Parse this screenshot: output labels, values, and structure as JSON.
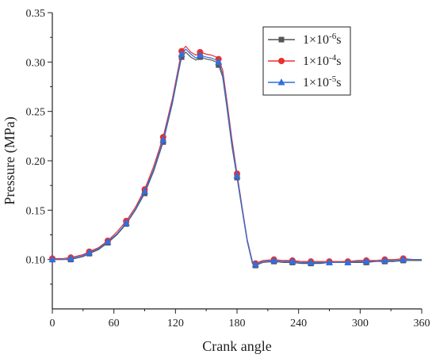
{
  "chart_data": {
    "type": "line",
    "xlabel": "Crank angle",
    "ylabel": "Pressure (MPa)",
    "xlim": [
      0,
      360
    ],
    "ylim": [
      0.05,
      0.35
    ],
    "xticks": [
      0,
      60,
      120,
      180,
      240,
      300,
      360
    ],
    "yticks": [
      0.1,
      0.15,
      0.2,
      0.25,
      0.3,
      0.35
    ],
    "x_tick_labels": [
      "0",
      "60",
      "120",
      "180",
      "240",
      "300",
      "360"
    ],
    "y_tick_labels": [
      "0.10",
      "0.15",
      "0.20",
      "0.25",
      "0.30",
      "0.35"
    ],
    "grid": false,
    "legend_position": "top-right",
    "marker_x": [
      0,
      18,
      36,
      54,
      72,
      90,
      108,
      126,
      144,
      162,
      180,
      198,
      216,
      234,
      252,
      270,
      288,
      306,
      324,
      342
    ],
    "series": [
      {
        "name": "1×10",
        "name_sup": "-6",
        "name_suffix": "s",
        "color": "#555555",
        "marker": "square",
        "x": [
          0,
          10,
          18,
          30,
          36,
          45,
          54,
          63,
          72,
          81,
          90,
          99,
          108,
          117,
          123,
          126,
          130,
          135,
          140,
          144,
          150,
          155,
          160,
          162,
          166,
          170,
          175,
          180,
          185,
          190,
          195,
          198,
          205,
          216,
          225,
          234,
          243,
          252,
          261,
          270,
          279,
          288,
          297,
          306,
          315,
          324,
          333,
          342,
          352,
          360
        ],
        "y": [
          0.1,
          0.1,
          0.1,
          0.103,
          0.106,
          0.11,
          0.117,
          0.125,
          0.136,
          0.15,
          0.167,
          0.19,
          0.219,
          0.258,
          0.29,
          0.305,
          0.31,
          0.305,
          0.302,
          0.305,
          0.303,
          0.302,
          0.3,
          0.297,
          0.285,
          0.255,
          0.215,
          0.183,
          0.15,
          0.118,
          0.096,
          0.094,
          0.097,
          0.098,
          0.097,
          0.097,
          0.096,
          0.096,
          0.096,
          0.097,
          0.097,
          0.097,
          0.097,
          0.097,
          0.098,
          0.098,
          0.098,
          0.099,
          0.099,
          0.099
        ]
      },
      {
        "name": "1×10",
        "name_sup": "-4",
        "name_suffix": "s",
        "color": "#e8302f",
        "marker": "circle",
        "x": [
          0,
          10,
          18,
          30,
          36,
          45,
          54,
          63,
          72,
          81,
          90,
          99,
          108,
          117,
          123,
          126,
          130,
          135,
          140,
          144,
          150,
          155,
          160,
          162,
          166,
          170,
          175,
          180,
          185,
          190,
          195,
          198,
          205,
          216,
          225,
          234,
          243,
          252,
          261,
          270,
          279,
          288,
          297,
          306,
          315,
          324,
          333,
          342,
          352,
          360
        ],
        "y": [
          0.101,
          0.101,
          0.102,
          0.105,
          0.108,
          0.112,
          0.119,
          0.128,
          0.139,
          0.153,
          0.171,
          0.195,
          0.224,
          0.263,
          0.295,
          0.311,
          0.316,
          0.31,
          0.307,
          0.31,
          0.308,
          0.307,
          0.305,
          0.303,
          0.292,
          0.262,
          0.222,
          0.187,
          0.153,
          0.12,
          0.098,
          0.096,
          0.099,
          0.1,
          0.099,
          0.099,
          0.098,
          0.098,
          0.098,
          0.098,
          0.098,
          0.098,
          0.099,
          0.099,
          0.099,
          0.1,
          0.1,
          0.101,
          0.1,
          0.1
        ]
      },
      {
        "name": "1×10",
        "name_sup": "-5",
        "name_suffix": "s",
        "color": "#2f6fe0",
        "marker": "triangle",
        "x": [
          0,
          10,
          18,
          30,
          36,
          45,
          54,
          63,
          72,
          81,
          90,
          99,
          108,
          117,
          123,
          126,
          130,
          135,
          140,
          144,
          150,
          155,
          160,
          162,
          166,
          170,
          175,
          180,
          185,
          190,
          195,
          198,
          205,
          216,
          225,
          234,
          243,
          252,
          261,
          270,
          279,
          288,
          297,
          306,
          315,
          324,
          333,
          342,
          352,
          360
        ],
        "y": [
          0.1,
          0.1,
          0.101,
          0.104,
          0.107,
          0.111,
          0.118,
          0.126,
          0.137,
          0.151,
          0.169,
          0.192,
          0.221,
          0.26,
          0.292,
          0.308,
          0.313,
          0.308,
          0.304,
          0.307,
          0.305,
          0.304,
          0.302,
          0.3,
          0.288,
          0.258,
          0.218,
          0.185,
          0.151,
          0.119,
          0.097,
          0.095,
          0.098,
          0.099,
          0.098,
          0.098,
          0.097,
          0.097,
          0.097,
          0.097,
          0.097,
          0.097,
          0.098,
          0.098,
          0.098,
          0.099,
          0.099,
          0.1,
          0.1,
          0.1
        ]
      }
    ]
  }
}
